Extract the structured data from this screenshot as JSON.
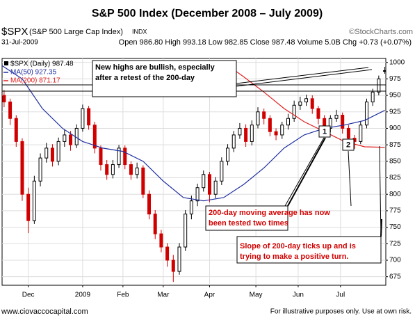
{
  "chart_data": {
    "type": "candlestick",
    "title": "S&P 500 Index (December 2008 – July 2009)",
    "symbol": "$SPX",
    "symbol_desc": "(S&P 500 Large Cap Index)",
    "exchange": "INDX",
    "source": "©StockCharts.com",
    "date": "31-Jul-2009",
    "stats": "Open 986.80 High 993.18 Low 982.85 Close 987.48 Volume 5.0B Chg +0.73 (+0.07%)",
    "candle_name": "$SPX (Daily) 987.48",
    "up_color": "#000000",
    "down_color": "#d00000",
    "x": [
      1,
      4,
      7,
      10,
      13,
      16,
      19,
      22,
      25,
      28,
      31,
      34,
      37,
      40,
      43,
      46,
      49,
      52,
      55,
      58,
      61,
      64,
      67,
      70,
      73,
      76,
      79,
      82,
      85,
      88,
      91,
      94,
      97,
      100,
      103,
      106,
      109,
      112,
      115,
      118,
      121,
      124,
      127,
      130,
      133,
      136,
      139,
      142,
      145,
      148,
      151,
      154,
      157,
      160,
      163,
      166,
      169,
      172,
      175,
      178,
      181,
      184,
      187,
      190
    ],
    "open": [
      950,
      940,
      915,
      880,
      800,
      760,
      820,
      855,
      870,
      850,
      880,
      890,
      875,
      900,
      930,
      905,
      870,
      845,
      830,
      845,
      870,
      845,
      830,
      840,
      800,
      770,
      740,
      720,
      700,
      683,
      720,
      770,
      790,
      810,
      830,
      800,
      820,
      850,
      870,
      890,
      900,
      880,
      905,
      925,
      915,
      895,
      890,
      905,
      915,
      935,
      940,
      945,
      930,
      915,
      900,
      915,
      920,
      900,
      885,
      880,
      905,
      940,
      955,
      986.8
    ],
    "high": [
      958,
      945,
      920,
      885,
      810,
      828,
      862,
      878,
      876,
      886,
      898,
      896,
      906,
      936,
      934,
      910,
      874,
      852,
      852,
      875,
      874,
      850,
      848,
      844,
      806,
      776,
      746,
      726,
      708,
      726,
      776,
      798,
      816,
      836,
      834,
      826,
      856,
      876,
      896,
      908,
      906,
      912,
      932,
      930,
      920,
      900,
      910,
      922,
      942,
      948,
      951,
      950,
      934,
      920,
      920,
      928,
      924,
      905,
      890,
      910,
      945,
      960,
      980,
      993.18
    ],
    "low": [
      932,
      905,
      872,
      790,
      741,
      755,
      812,
      848,
      842,
      844,
      872,
      866,
      870,
      895,
      898,
      862,
      836,
      822,
      824,
      840,
      838,
      822,
      824,
      794,
      762,
      732,
      712,
      690,
      667,
      678,
      714,
      762,
      782,
      804,
      788,
      794,
      814,
      844,
      864,
      884,
      872,
      874,
      900,
      906,
      888,
      882,
      884,
      898,
      910,
      928,
      934,
      922,
      906,
      892,
      894,
      910,
      892,
      878,
      869,
      876,
      900,
      934,
      950,
      982.85
    ],
    "close": [
      940,
      915,
      880,
      800,
      760,
      820,
      855,
      870,
      850,
      880,
      890,
      875,
      900,
      930,
      905,
      870,
      845,
      830,
      845,
      870,
      845,
      830,
      840,
      800,
      770,
      740,
      720,
      700,
      683,
      720,
      770,
      790,
      810,
      830,
      800,
      820,
      850,
      870,
      890,
      900,
      880,
      905,
      925,
      915,
      895,
      890,
      905,
      915,
      935,
      940,
      945,
      930,
      915,
      900,
      915,
      920,
      900,
      885,
      880,
      905,
      940,
      955,
      975,
      987.48
    ],
    "series": [
      {
        "name": "MA(50) 927.35",
        "color": "#1f2fa0",
        "x": [
          0,
          10,
          20,
          30,
          40,
          50,
          60,
          70,
          80,
          90,
          100,
          110,
          120,
          130,
          140,
          150,
          160,
          170,
          180,
          190
        ],
        "values": [
          995,
          975,
          930,
          900,
          880,
          870,
          865,
          850,
          820,
          795,
          790,
          795,
          815,
          840,
          870,
          890,
          900,
          905,
          912,
          927.35
        ]
      },
      {
        "name": "MA(200) 871.17",
        "color": "#e02020",
        "x": [
          0,
          10,
          20,
          30,
          40,
          50,
          60,
          70,
          80,
          90,
          100,
          110,
          120,
          130,
          140,
          150,
          160,
          170,
          180,
          190
        ],
        "values": [
          null,
          null,
          null,
          null,
          null,
          null,
          null,
          null,
          null,
          null,
          null,
          1000,
          978,
          955,
          930,
          910,
          895,
          880,
          872,
          871.17
        ]
      }
    ],
    "xlim": [
      0,
      190.5
    ],
    "xticks": [
      {
        "value": 13,
        "label": "Dec"
      },
      {
        "value": 40,
        "label": "2009"
      },
      {
        "value": 60,
        "label": "Feb"
      },
      {
        "value": 80,
        "label": "Mar"
      },
      {
        "value": 103,
        "label": "Apr"
      },
      {
        "value": 126,
        "label": "May"
      },
      {
        "value": 147,
        "label": "Jun"
      },
      {
        "value": 168,
        "label": "Jul"
      }
    ],
    "ylim": [
      662,
      1006
    ],
    "yticks": [
      675,
      700,
      725,
      750,
      775,
      800,
      825,
      850,
      875,
      900,
      925,
      950,
      975,
      1000
    ],
    "grid": true,
    "annotations": [
      {
        "lines": [
          "New highs are bullish, especially",
          "after a retest of the 200-day"
        ]
      },
      {
        "lines": [
          "200-day moving average has now",
          "been tested two times"
        ]
      },
      {
        "lines": [
          "Slope of 200-day ticks up and is",
          "trying to make a positive turn."
        ]
      }
    ],
    "markers": [
      "1",
      "2"
    ],
    "footer_left": "www.ciovaccocapital.com",
    "footer_right": "For illustrative purposes only.  Use at own risk."
  }
}
